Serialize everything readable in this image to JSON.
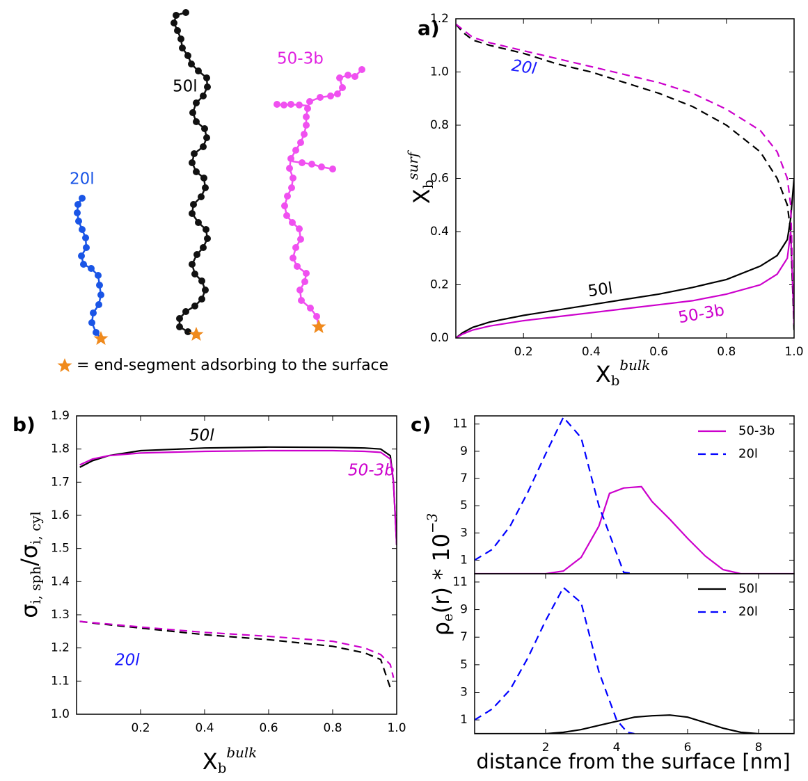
{
  "schematic": {
    "labels": [
      "20l",
      "50l",
      "50-3b"
    ],
    "legend_text": "= end-segment adsorbing to the surface"
  },
  "chart_data": [
    {
      "type": "line",
      "panel": "a)",
      "xlabel": [
        {
          "text": "X"
        },
        {
          "sub": "b"
        },
        {
          "sup": "bulk"
        }
      ],
      "ylabel": [
        {
          "text": "X"
        },
        {
          "sub": "b"
        },
        {
          "sup": "surf"
        }
      ],
      "xlim": [
        0,
        1
      ],
      "ylim": [
        0,
        1.2
      ],
      "xticks": [
        0.2,
        0.4,
        0.6,
        0.8,
        {
          "value": 1,
          "label": "1.0"
        }
      ],
      "yticks": [
        {
          "value": 0,
          "label": "0.0"
        },
        0.2,
        0.4,
        0.6,
        0.8,
        {
          "value": 1,
          "label": "1.0"
        },
        1.2
      ],
      "x": [
        0,
        0.02,
        0.05,
        0.1,
        0.2,
        0.3,
        0.4,
        0.5,
        0.6,
        0.7,
        0.8,
        0.9,
        0.95,
        0.98,
        0.99,
        1.0
      ],
      "series": [
        {
          "color": "#000000",
          "dash": false,
          "values": [
            0,
            0.02,
            0.04,
            0.06,
            0.085,
            0.105,
            0.125,
            0.145,
            0.165,
            0.19,
            0.22,
            0.27,
            0.31,
            0.37,
            0.45,
            0.6
          ]
        },
        {
          "color": "#cc00cc",
          "dash": false,
          "values": [
            0,
            0.015,
            0.03,
            0.045,
            0.065,
            0.08,
            0.095,
            0.11,
            0.125,
            0.14,
            0.165,
            0.2,
            0.24,
            0.3,
            0.4,
            0.05
          ]
        },
        {
          "color": "#000000",
          "dash": true,
          "values": [
            1.18,
            1.15,
            1.12,
            1.1,
            1.07,
            1.03,
            1.0,
            0.96,
            0.92,
            0.87,
            0.8,
            0.7,
            0.6,
            0.5,
            0.4,
            0.03
          ]
        },
        {
          "color": "#cc00cc",
          "dash": true,
          "values": [
            1.18,
            1.16,
            1.13,
            1.11,
            1.08,
            1.05,
            1.02,
            0.99,
            0.96,
            0.92,
            0.86,
            0.78,
            0.7,
            0.6,
            0.5,
            0.05
          ]
        }
      ],
      "annotations": [
        {
          "text": "20l",
          "color": "#1a1aff"
        },
        {
          "text": "50l",
          "color": "#000000"
        },
        {
          "text": "50-3b",
          "color": "#cc00cc"
        }
      ]
    },
    {
      "type": "line",
      "panel": "b)",
      "xlabel": [
        {
          "text": "X"
        },
        {
          "sub": "b"
        },
        {
          "sup": "bulk"
        }
      ],
      "ylabel": [
        {
          "text": "σ"
        },
        {
          "sub": "i, sph"
        },
        {
          "text": "/σ"
        },
        {
          "sub": "i, cyl"
        }
      ],
      "xlim": [
        0,
        1
      ],
      "ylim": [
        1.0,
        1.9
      ],
      "xticks": [
        0.2,
        0.4,
        0.6,
        0.8,
        {
          "value": 1,
          "label": "1.0"
        }
      ],
      "yticks": [
        {
          "value": 1,
          "label": "1.0"
        },
        1.1,
        1.2,
        1.3,
        1.4,
        1.5,
        1.6,
        1.7,
        1.8,
        1.9
      ],
      "x": [
        0.01,
        0.05,
        0.1,
        0.2,
        0.4,
        0.6,
        0.8,
        0.9,
        0.95,
        0.98,
        0.99,
        1.0
      ],
      "series": [
        {
          "color": "#000000",
          "dash": false,
          "values": [
            1.745,
            1.765,
            1.78,
            1.795,
            1.803,
            1.806,
            1.805,
            1.803,
            1.8,
            1.78,
            1.7,
            1.51
          ]
        },
        {
          "color": "#cc00cc",
          "dash": false,
          "values": [
            1.752,
            1.77,
            1.78,
            1.788,
            1.793,
            1.795,
            1.795,
            1.793,
            1.79,
            1.77,
            1.7,
            1.51
          ]
        },
        {
          "color": "#000000",
          "dash": true,
          "values": [
            1.28,
            1.275,
            1.27,
            1.26,
            1.24,
            1.225,
            1.205,
            1.185,
            1.165,
            1.08,
            null,
            null
          ]
        },
        {
          "color": "#cc00cc",
          "dash": true,
          "values": [
            1.28,
            1.276,
            1.272,
            1.263,
            1.247,
            1.235,
            1.22,
            1.2,
            1.18,
            1.15,
            1.11,
            null
          ]
        }
      ],
      "annotations": [
        {
          "text": "50l",
          "color": "#000000"
        },
        {
          "text": "50-3b",
          "color": "#cc00cc"
        },
        {
          "text": "20l",
          "color": "#1a1aff"
        }
      ]
    },
    {
      "type": "line",
      "panel": "c)",
      "ylabel": [
        {
          "text": "ρ"
        },
        {
          "sub": "e"
        },
        {
          "text": "(r) * 10"
        },
        {
          "sup": "−3"
        }
      ],
      "xlim": [
        0,
        9
      ],
      "ylim": [
        0,
        11.6
      ],
      "yticks": [
        1,
        3,
        5,
        7,
        9,
        11
      ],
      "legend": "upper right",
      "series": [
        {
          "name": "50-3b",
          "color": "#cc00cc",
          "dash": false,
          "x": [
            0,
            1,
            2,
            2.5,
            3,
            3.5,
            3.8,
            4.2,
            4.7,
            5,
            5.5,
            6,
            6.5,
            7,
            7.5,
            8,
            9
          ],
          "values": [
            0,
            0,
            0,
            0.2,
            1.2,
            3.5,
            5.9,
            6.3,
            6.4,
            5.3,
            4.0,
            2.6,
            1.3,
            0.3,
            0,
            0,
            0
          ]
        },
        {
          "name": "20l",
          "color": "#0000ff",
          "dash": true,
          "x": [
            0,
            0.5,
            1,
            1.5,
            2,
            2.5,
            3,
            3.5,
            4,
            4.2,
            4.5
          ],
          "values": [
            1.0,
            1.8,
            3.5,
            6.0,
            8.8,
            11.5,
            10.0,
            5.0,
            1.5,
            0.1,
            0
          ]
        }
      ]
    },
    {
      "type": "line",
      "xlabel": [
        {
          "text": "distance from the surface [nm]"
        }
      ],
      "xlim": [
        0,
        9
      ],
      "ylim": [
        0,
        11.6
      ],
      "xticks": [
        2,
        4,
        6,
        8
      ],
      "yticks": [
        1,
        3,
        5,
        7,
        9,
        11
      ],
      "legend": "upper right",
      "series": [
        {
          "name": "50l",
          "color": "#000000",
          "dash": false,
          "x": [
            0,
            2,
            2.5,
            3,
            3.5,
            4,
            4.5,
            5,
            5.5,
            6,
            6.5,
            7,
            7.5,
            8,
            9
          ],
          "values": [
            0,
            0,
            0.1,
            0.3,
            0.6,
            0.9,
            1.2,
            1.3,
            1.35,
            1.2,
            0.8,
            0.4,
            0.1,
            0,
            0
          ]
        },
        {
          "name": "20l",
          "color": "#0000ff",
          "dash": true,
          "x": [
            0,
            0.5,
            1,
            1.5,
            2,
            2.5,
            3,
            3.5,
            4,
            4.3,
            4.5
          ],
          "values": [
            1.0,
            1.8,
            3.2,
            5.5,
            8.2,
            10.6,
            9.5,
            4.5,
            1.0,
            0.1,
            0
          ]
        }
      ]
    }
  ]
}
